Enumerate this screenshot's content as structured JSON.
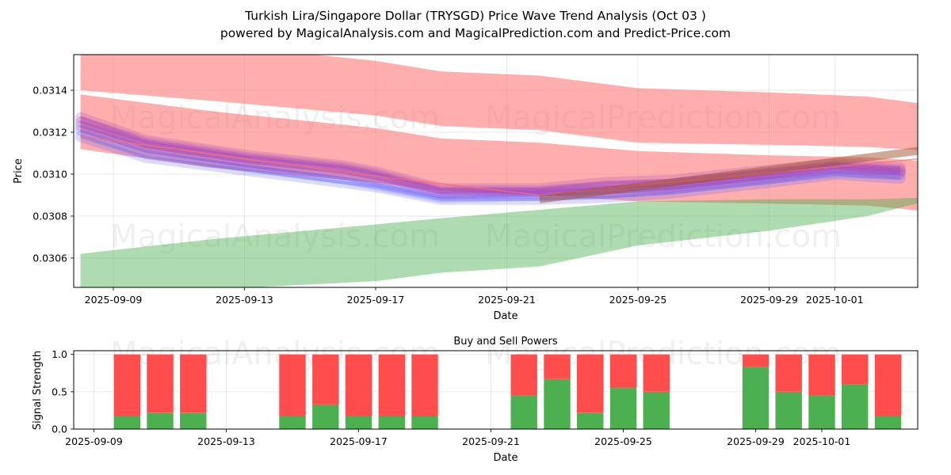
{
  "title_line1": "Turkish Lira/Singapore Dollar (TRYSGD) Price Wave Trend Analysis (Oct 03 )",
  "title_line2": "powered by MagicalAnalysis.com and MagicalPrediction.com and Predict-Price.com",
  "watermarks": [
    "MagicalAnalysis.com",
    "MagicalPrediction.com"
  ],
  "colors": {
    "red_band": "#ff6b6b",
    "green_band": "#4caf50",
    "blue_wave": "#5c5cff",
    "purple_wave": "#9b3fbf",
    "buy": "#4caf50",
    "sell": "#ff4d4d"
  },
  "chart_data": [
    {
      "type": "area",
      "title": "",
      "xlabel": "Date",
      "ylabel": "Price",
      "x_range": [
        "2025-09-08",
        "2025-10-05"
      ],
      "ylim": [
        0.03046,
        0.03157
      ],
      "yticks": [
        0.0306,
        0.0308,
        0.031,
        0.0312,
        0.0314
      ],
      "ytick_labels": [
        "0.0306",
        "0.0308",
        "0.0310",
        "0.0312",
        "0.0314"
      ],
      "xtick_dates": [
        "2025-09-09",
        "2025-09-13",
        "2025-09-17",
        "2025-09-21",
        "2025-09-25",
        "2025-09-29",
        "2025-10-01"
      ],
      "xtick_labels": [
        "2025-09-09",
        "2025-09-13",
        "2025-09-17",
        "2025-09-21",
        "2025-09-25",
        "2025-09-29",
        "2025-10-01"
      ],
      "grid": true,
      "bands": [
        {
          "name": "upper red band",
          "color": "red",
          "x": [
            "2025-09-08",
            "2025-09-12",
            "2025-09-17",
            "2025-09-19",
            "2025-09-22",
            "2025-09-25",
            "2025-09-29",
            "2025-10-02",
            "2025-10-04"
          ],
          "upper": [
            0.03157,
            0.03162,
            0.03154,
            0.03149,
            0.03147,
            0.03141,
            0.03139,
            0.03137,
            0.03133
          ],
          "lower": [
            0.0314,
            0.03135,
            0.03128,
            0.03123,
            0.03121,
            0.03115,
            0.03114,
            0.03113,
            0.03111
          ]
        },
        {
          "name": "middle red band",
          "color": "red",
          "x": [
            "2025-09-08",
            "2025-09-12",
            "2025-09-17",
            "2025-09-19",
            "2025-09-22",
            "2025-09-25",
            "2025-09-29",
            "2025-10-02",
            "2025-10-04"
          ],
          "upper": [
            0.03138,
            0.0313,
            0.03122,
            0.03117,
            0.03115,
            0.03111,
            0.03109,
            0.03108,
            0.03106
          ],
          "lower": [
            0.03112,
            0.03103,
            0.03096,
            0.03092,
            0.0309,
            0.03087,
            0.03086,
            0.03085,
            0.03082
          ]
        },
        {
          "name": "green band",
          "color": "green",
          "x": [
            "2025-09-08",
            "2025-09-12",
            "2025-09-17",
            "2025-09-19",
            "2025-09-22",
            "2025-09-25",
            "2025-09-29",
            "2025-10-02",
            "2025-10-04"
          ],
          "upper": [
            0.03062,
            0.03069,
            0.03076,
            0.03079,
            0.03083,
            0.03087,
            0.03088,
            0.03088,
            0.03089
          ],
          "lower": [
            0.03042,
            0.03045,
            0.03049,
            0.03053,
            0.03056,
            0.03066,
            0.03073,
            0.0308,
            0.03088
          ]
        }
      ],
      "waves": [
        {
          "name": "wave 1",
          "color": "blue",
          "x": [
            "2025-09-08",
            "2025-09-10",
            "2025-09-13",
            "2025-09-16",
            "2025-09-17",
            "2025-09-19",
            "2025-09-22",
            "2025-09-24",
            "2025-09-26",
            "2025-09-29",
            "2025-10-01",
            "2025-10-03"
          ],
          "values": [
            0.03118,
            0.03108,
            0.03102,
            0.03096,
            0.03094,
            0.03088,
            0.03088,
            0.03089,
            0.03091,
            0.03096,
            0.031,
            0.03098
          ]
        },
        {
          "name": "wave 2",
          "color": "blue",
          "x": [
            "2025-09-08",
            "2025-09-10",
            "2025-09-13",
            "2025-09-16",
            "2025-09-17",
            "2025-09-19",
            "2025-09-22",
            "2025-09-24",
            "2025-09-26",
            "2025-09-29",
            "2025-10-01",
            "2025-10-03"
          ],
          "values": [
            0.03121,
            0.03111,
            0.03104,
            0.03098,
            0.03095,
            0.03089,
            0.0309,
            0.03091,
            0.03093,
            0.03098,
            0.03101,
            0.031
          ]
        },
        {
          "name": "wave 3",
          "color": "purple",
          "x": [
            "2025-09-08",
            "2025-09-10",
            "2025-09-13",
            "2025-09-16",
            "2025-09-17",
            "2025-09-19",
            "2025-09-22",
            "2025-09-24",
            "2025-09-26",
            "2025-09-29",
            "2025-10-01",
            "2025-10-03"
          ],
          "values": [
            0.03123,
            0.03113,
            0.03106,
            0.03101,
            0.03098,
            0.03091,
            0.03091,
            0.03093,
            0.03094,
            0.03099,
            0.03103,
            0.03101
          ]
        },
        {
          "name": "wave 4",
          "color": "purple",
          "x": [
            "2025-09-08",
            "2025-09-10",
            "2025-09-13",
            "2025-09-16",
            "2025-09-17",
            "2025-09-19",
            "2025-09-22",
            "2025-09-24",
            "2025-09-26",
            "2025-09-29",
            "2025-10-01",
            "2025-10-03"
          ],
          "values": [
            0.03125,
            0.03115,
            0.03108,
            0.03103,
            0.031,
            0.03092,
            0.03092,
            0.03094,
            0.03095,
            0.031,
            0.03104,
            0.03102
          ]
        },
        {
          "name": "wave 5",
          "color": "purple",
          "x": [
            "2025-09-08",
            "2025-09-10",
            "2025-09-13",
            "2025-09-16",
            "2025-09-17",
            "2025-09-19",
            "2025-09-22",
            "2025-09-24",
            "2025-09-26",
            "2025-09-29",
            "2025-10-01",
            "2025-10-03"
          ],
          "values": [
            0.03127,
            0.03116,
            0.03109,
            0.03104,
            0.03101,
            0.03093,
            0.03093,
            0.03096,
            0.03097,
            0.03102,
            0.03105,
            0.03103
          ]
        }
      ],
      "trend_lines": [
        {
          "name": "red trend",
          "color": "red",
          "x": [
            "2025-09-08",
            "2025-09-17",
            "2025-09-22",
            "2025-10-04"
          ],
          "values": [
            0.03118,
            0.03099,
            0.0309,
            0.03108
          ]
        },
        {
          "name": "brown trend",
          "color": "brown",
          "x": [
            "2025-09-22",
            "2025-10-04"
          ],
          "values": [
            0.03088,
            0.03112
          ]
        }
      ]
    },
    {
      "type": "bar",
      "title": "Buy and Sell Powers",
      "xlabel": "Date",
      "ylabel": "Signal Strength",
      "x_range": [
        "2025-09-08",
        "2025-10-05"
      ],
      "ylim": [
        0.0,
        1.05
      ],
      "yticks": [
        0.0,
        0.5,
        1.0
      ],
      "ytick_labels": [
        "0.0",
        "0.5",
        "1.0"
      ],
      "xtick_dates": [
        "2025-09-09",
        "2025-09-13",
        "2025-09-17",
        "2025-09-21",
        "2025-09-25",
        "2025-09-29",
        "2025-10-01"
      ],
      "xtick_labels": [
        "2025-09-09",
        "2025-09-13",
        "2025-09-17",
        "2025-09-21",
        "2025-09-25",
        "2025-09-29",
        "2025-10-01"
      ],
      "grid": true,
      "categories": [
        "2025-09-10",
        "2025-09-11",
        "2025-09-12",
        "2025-09-15",
        "2025-09-16",
        "2025-09-17",
        "2025-09-18",
        "2025-09-19",
        "2025-09-22",
        "2025-09-23",
        "2025-09-24",
        "2025-09-25",
        "2025-09-26",
        "2025-09-29",
        "2025-09-30",
        "2025-10-01",
        "2025-10-02",
        "2025-10-03"
      ],
      "series": [
        {
          "name": "Buy",
          "color": "green",
          "values": [
            0.17,
            0.22,
            0.22,
            0.17,
            0.33,
            0.17,
            0.17,
            0.17,
            0.45,
            0.67,
            0.22,
            0.55,
            0.5,
            0.83,
            0.5,
            0.45,
            0.6,
            0.17
          ]
        },
        {
          "name": "Sell",
          "color": "red",
          "values": [
            0.83,
            0.78,
            0.78,
            0.83,
            0.67,
            0.83,
            0.83,
            0.83,
            0.55,
            0.33,
            0.78,
            0.45,
            0.5,
            0.17,
            0.5,
            0.55,
            0.4,
            0.83
          ]
        }
      ]
    }
  ]
}
